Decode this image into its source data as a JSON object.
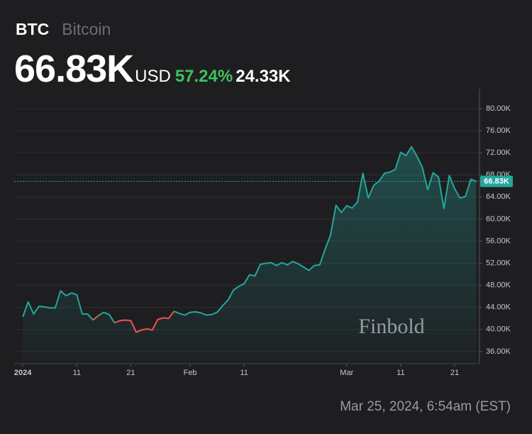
{
  "header": {
    "symbol": "BTC",
    "name": "Bitcoin",
    "price": {
      "value": 66.83,
      "label": "66.83K"
    },
    "currency": "USD",
    "change_percent": {
      "value": 57.24,
      "label": "57.24%"
    },
    "change": {
      "value": 24.33,
      "label": "24.33K"
    }
  },
  "chart_data": {
    "type": "line",
    "watermark": "Finbold",
    "x": [
      0,
      1,
      2,
      3,
      4,
      5,
      6,
      7,
      8,
      9,
      10,
      11,
      12,
      13,
      14,
      15,
      16,
      17,
      18,
      19,
      20,
      21,
      22,
      23,
      24,
      25,
      26,
      27,
      28,
      29,
      30,
      31,
      32,
      33,
      34,
      35,
      36,
      37,
      38,
      39,
      40,
      41,
      42,
      43,
      44,
      45,
      46,
      47,
      48,
      49,
      50,
      51,
      52,
      53,
      54,
      55,
      56,
      57,
      58,
      59,
      60,
      61,
      62,
      63,
      64,
      65,
      66,
      67,
      68,
      69,
      70,
      71,
      72,
      73,
      74,
      75,
      76,
      77,
      78,
      79,
      80,
      81,
      82,
      83,
      84
    ],
    "values": [
      42.3,
      45.0,
      42.8,
      44.2,
      44.1,
      43.9,
      43.9,
      47.0,
      46.1,
      46.6,
      46.3,
      42.8,
      42.8,
      41.7,
      42.5,
      43.1,
      42.7,
      41.2,
      41.6,
      41.7,
      41.6,
      39.5,
      39.9,
      40.1,
      39.9,
      41.8,
      42.1,
      42.0,
      43.3,
      42.9,
      42.6,
      43.1,
      43.2,
      43.0,
      42.6,
      42.7,
      43.1,
      44.3,
      45.3,
      47.1,
      47.8,
      48.3,
      49.9,
      49.7,
      51.8,
      52.0,
      52.1,
      51.6,
      52.1,
      51.7,
      52.3,
      51.9,
      51.3,
      50.7,
      51.6,
      51.7,
      54.5,
      57.1,
      62.5,
      61.2,
      62.4,
      62.0,
      63.1,
      68.3,
      63.8,
      66.1,
      66.9,
      68.3,
      68.5,
      69.0,
      72.1,
      71.5,
      73.1,
      71.4,
      69.4,
      65.3,
      68.4,
      67.6,
      61.9,
      67.9,
      65.5,
      63.8,
      64.1,
      67.2,
      66.83
    ],
    "color": "#26a69a",
    "negative_color": "#ef5350",
    "xlim": [
      -1.6,
      84.6
    ],
    "xticks": [
      {
        "value": 0,
        "label": "2024"
      },
      {
        "value": 10,
        "label": "11"
      },
      {
        "value": 20,
        "label": "21"
      },
      {
        "value": 31,
        "label": "Feb"
      },
      {
        "value": 41,
        "label": "11"
      },
      {
        "value": 60,
        "label": "Mar"
      },
      {
        "value": 70,
        "label": "11"
      },
      {
        "value": 80,
        "label": "21"
      }
    ],
    "ylim": [
      33.8,
      83.6
    ],
    "yticks": [
      {
        "value": 36,
        "label": "36.00K"
      },
      {
        "value": 40,
        "label": "40.00K"
      },
      {
        "value": 44,
        "label": "44.00K"
      },
      {
        "value": 48,
        "label": "48.00K"
      },
      {
        "value": 52,
        "label": "52.00K"
      },
      {
        "value": 56,
        "label": "56.00K"
      },
      {
        "value": 60,
        "label": "60.00K"
      },
      {
        "value": 64,
        "label": "64.00K"
      },
      {
        "value": 68,
        "label": "68.00K"
      },
      {
        "value": 72,
        "label": "72.00K"
      },
      {
        "value": 76,
        "label": "76.00K"
      },
      {
        "value": 80,
        "label": "80.00K"
      }
    ],
    "grid": true
  },
  "timestamp": "Mar 25, 2024, 6:54am (EST)"
}
